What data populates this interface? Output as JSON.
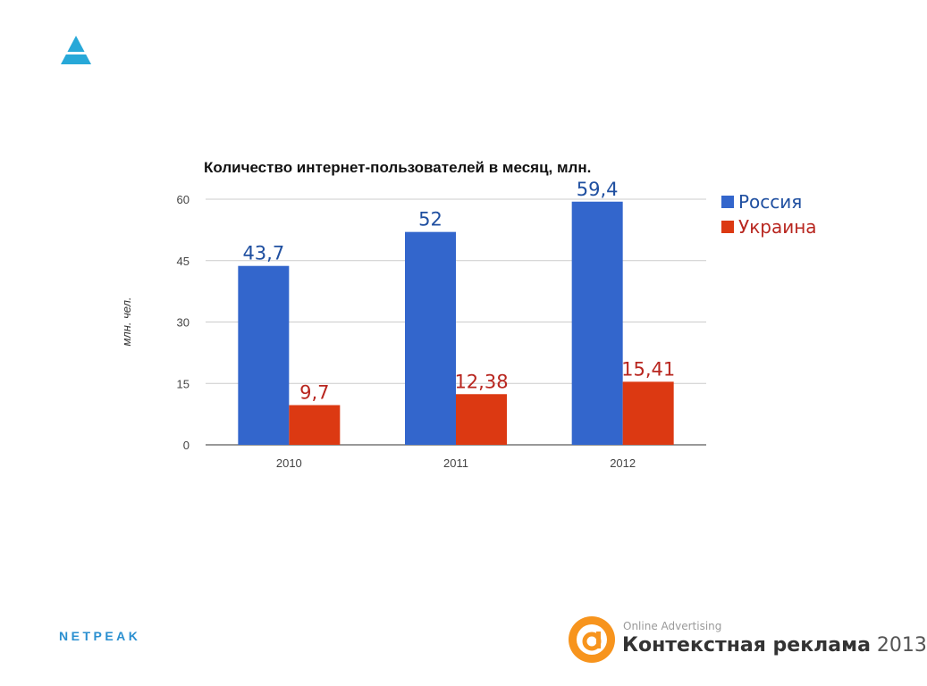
{
  "colors": {
    "accent": "#27a8d8",
    "russia": "#3366cc",
    "ukraine": "#dc3912",
    "russia_label": "#1f4fa0",
    "ukraine_label": "#b8261f"
  },
  "footer": {
    "brand": "NETPEAK",
    "conference_sub": "Online Advertising",
    "conference_title": "Контекстная реклама",
    "conference_year": "2013",
    "conference_icon": "orange-circle-a-icon"
  },
  "chart_data": {
    "type": "bar",
    "title": "Количество интернет-пользователей в месяц, млн.",
    "xlabel": "",
    "ylabel": "млн. чел.",
    "categories": [
      "2010",
      "2011",
      "2012"
    ],
    "series": [
      {
        "name": "Россия",
        "values": [
          43.7,
          52,
          59.4
        ],
        "labels": [
          "43,7",
          "52",
          "59,4"
        ]
      },
      {
        "name": "Украина",
        "values": [
          9.7,
          12.38,
          15.41
        ],
        "labels": [
          "9,7",
          "12,38",
          "15,41"
        ]
      }
    ],
    "ylim": [
      0,
      60
    ],
    "yticks": [
      0,
      15,
      30,
      45,
      60
    ],
    "grid": true,
    "legend": "right"
  }
}
